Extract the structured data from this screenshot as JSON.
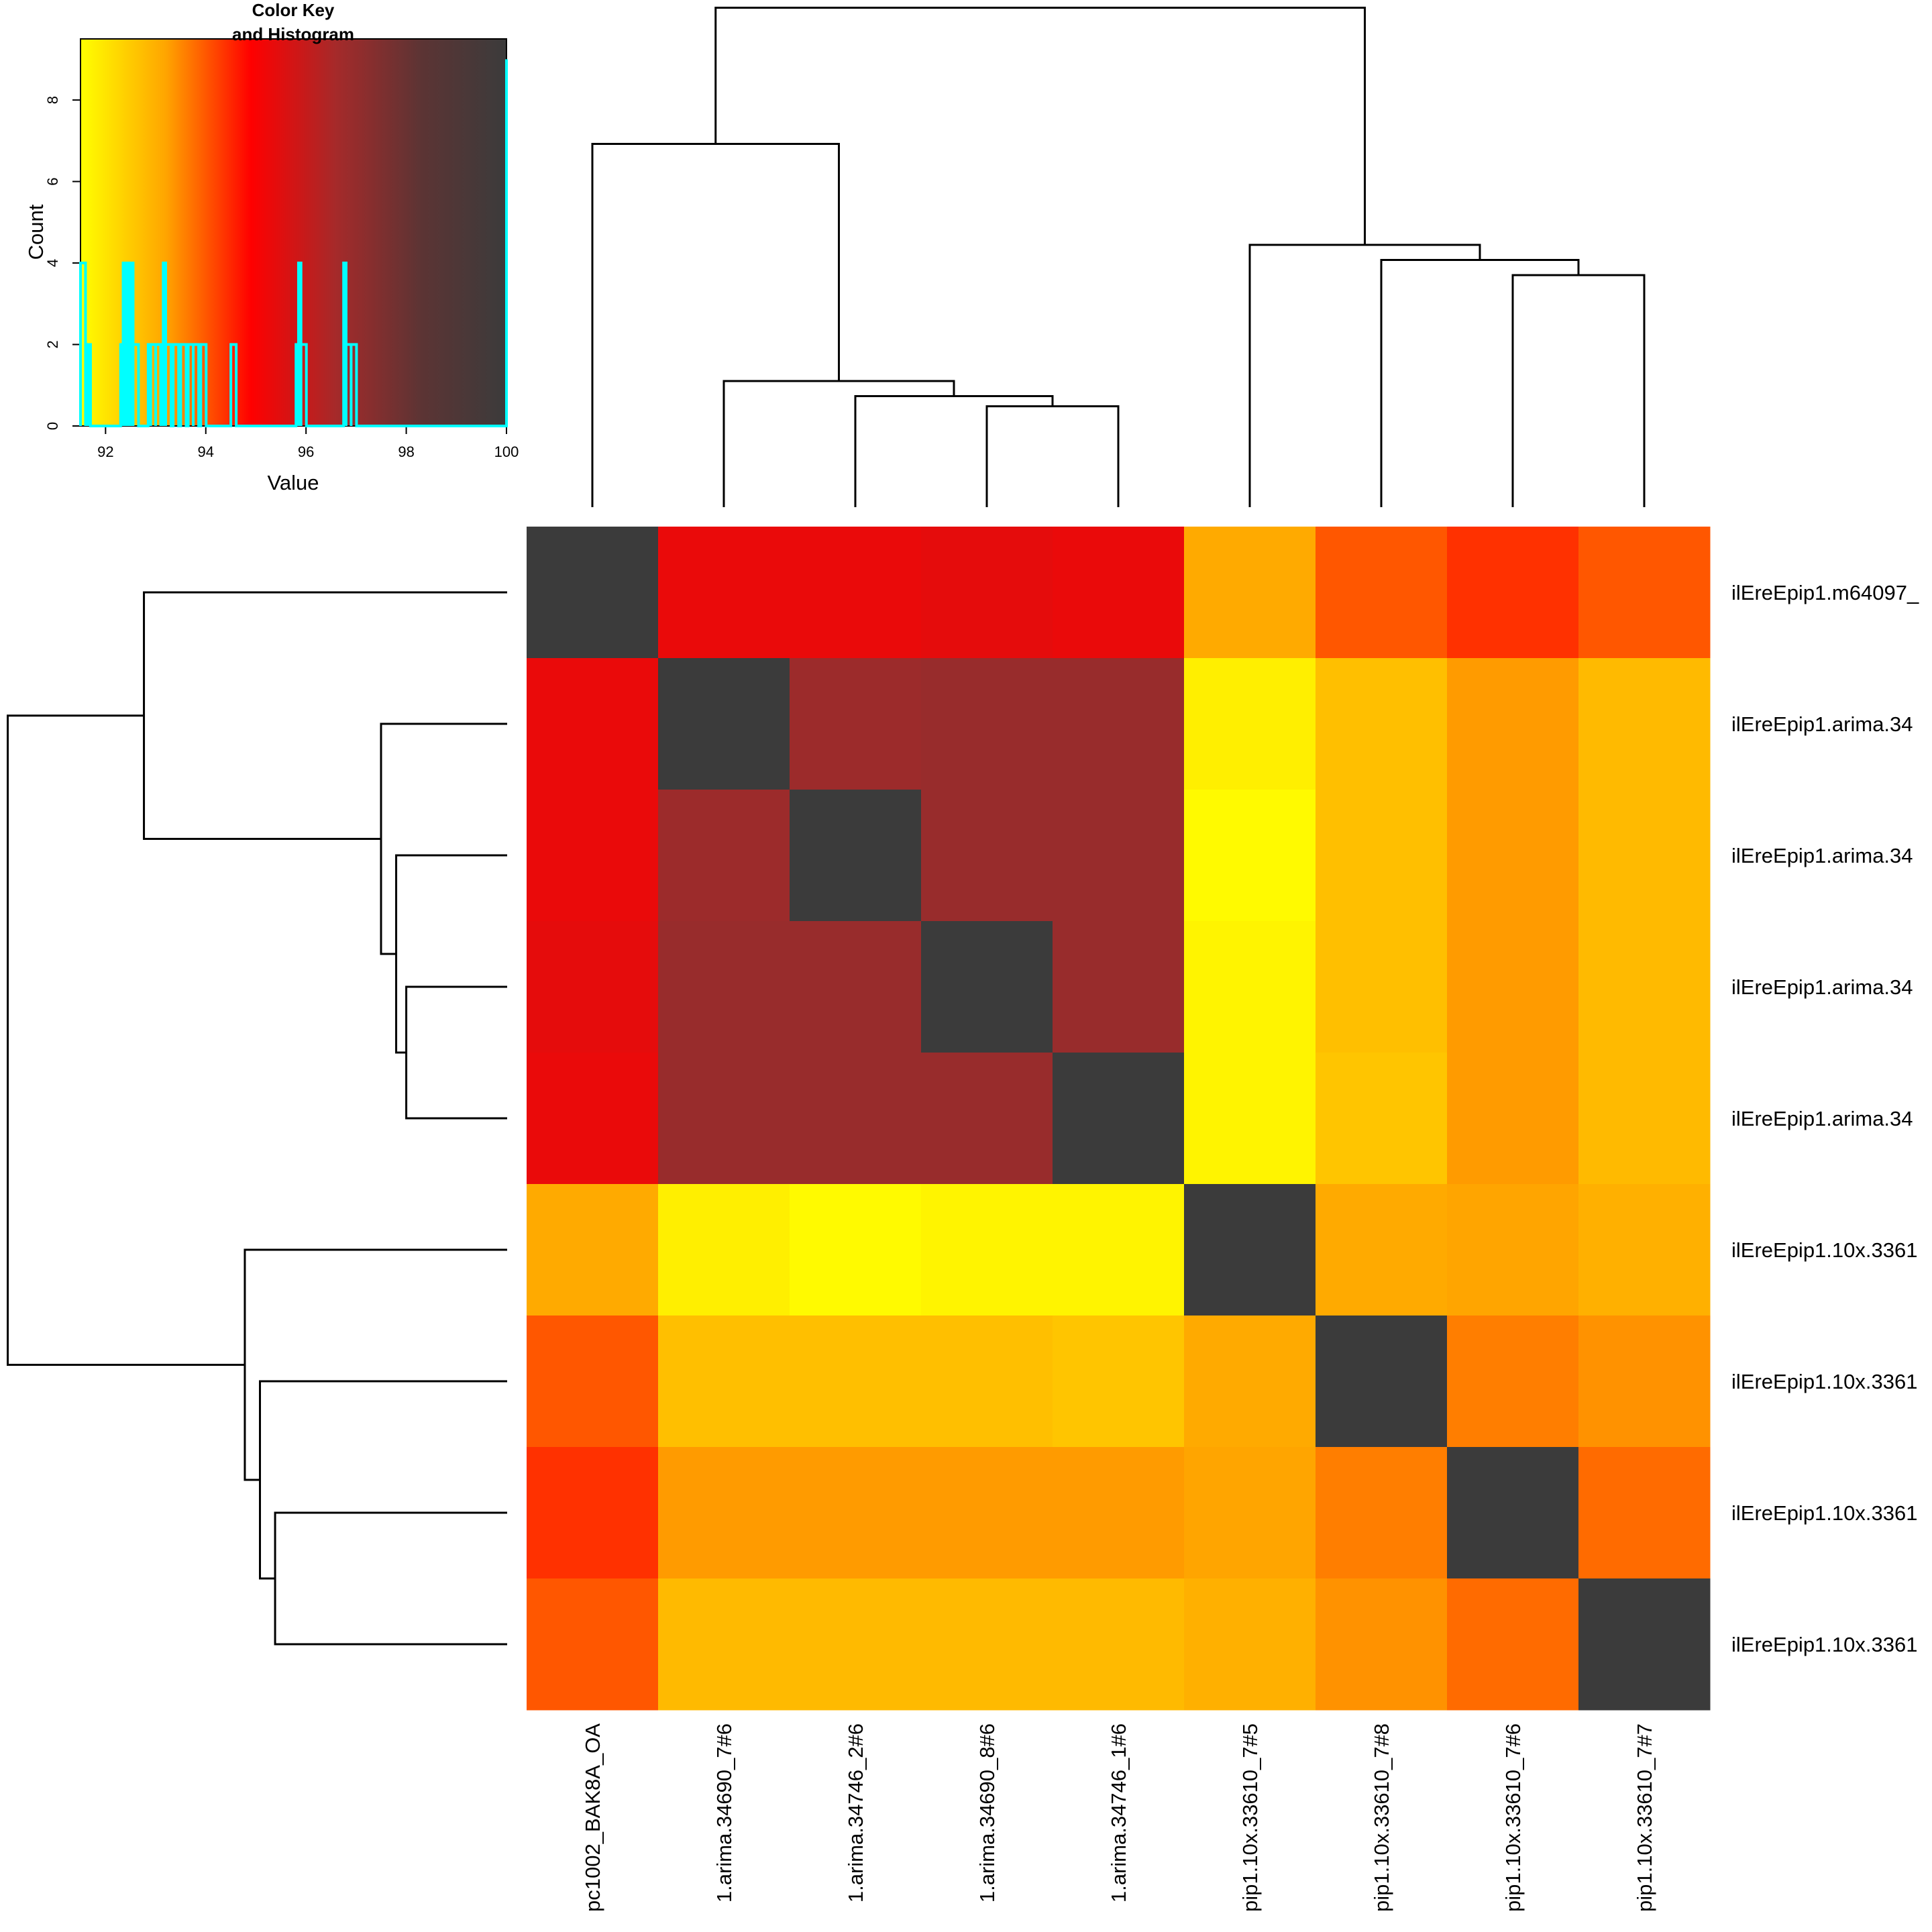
{
  "chart_data": [
    {
      "type": "heatmap",
      "title": "",
      "xlabel": "",
      "ylabel": "",
      "row_labels": [
        "ilEreEpip1.m64097_",
        "ilEreEpip1.arima.34",
        "ilEreEpip1.arima.34",
        "ilEreEpip1.arima.34",
        "ilEreEpip1.arima.34",
        "ilEreEpip1.10x.3361",
        "ilEreEpip1.10x.3361",
        "ilEreEpip1.10x.3361",
        "ilEreEpip1.10x.3361"
      ],
      "col_labels": [
        "pc1002_BAK8A_OA",
        "1.arima.34690_7#6",
        "1.arima.34746_2#6",
        "1.arima.34690_8#6",
        "1.arima.34746_1#6",
        "pip1.10x.33610_7#5",
        "pip1.10x.33610_7#8",
        "pip1.10x.33610_7#6",
        "pip1.10x.33610_7#7"
      ],
      "values": [
        [
          100,
          95.3,
          95.3,
          95.4,
          95.3,
          93.1,
          94.0,
          94.4,
          94.0
        ],
        [
          95.3,
          100,
          96.8,
          96.9,
          96.9,
          91.8,
          92.7,
          93.3,
          92.8
        ],
        [
          95.3,
          96.8,
          100,
          96.9,
          96.9,
          91.6,
          92.7,
          93.3,
          92.8
        ],
        [
          95.4,
          96.9,
          96.9,
          100,
          96.9,
          91.7,
          92.7,
          93.3,
          92.8
        ],
        [
          95.3,
          96.9,
          96.9,
          96.9,
          100,
          91.7,
          92.6,
          93.3,
          92.8
        ],
        [
          93.1,
          91.8,
          91.6,
          91.7,
          91.7,
          100,
          93.1,
          93.2,
          93.0
        ],
        [
          94.0,
          92.7,
          92.7,
          92.7,
          92.6,
          93.1,
          100,
          93.6,
          93.4
        ],
        [
          94.4,
          93.3,
          93.3,
          93.3,
          93.3,
          93.2,
          93.6,
          100,
          93.8
        ],
        [
          94.0,
          92.8,
          92.8,
          92.8,
          92.8,
          93.0,
          93.4,
          93.8,
          100
        ]
      ],
      "color_scale": [
        "#ffff00",
        "#ffa500",
        "#ff0000",
        "#a52a2a",
        "#5c3434",
        "#3b3b3b"
      ],
      "value_range": [
        91.5,
        100
      ],
      "row_dendrogram": "left",
      "col_dendrogram": "top"
    },
    {
      "type": "line",
      "title": "Color Key\nand Histogram",
      "title_lines": [
        "Color Key",
        "and Histogram"
      ],
      "xlabel": "Value",
      "ylabel": "Count",
      "xlim": [
        91.5,
        100
      ],
      "ylim": [
        0,
        9.5
      ],
      "xticks": [
        "92",
        "94",
        "96",
        "98",
        "100"
      ],
      "yticks": [
        "0",
        "2",
        "4",
        "6",
        "8"
      ],
      "series": [
        {
          "color": "#00ffff",
          "x": [
            91.55,
            91.6,
            91.65,
            91.7,
            92.3,
            92.35,
            92.4,
            92.45,
            92.5,
            92.55,
            92.85,
            92.9,
            93.0,
            93.1,
            93.15,
            93.2,
            93.35,
            93.5,
            93.65,
            93.75,
            93.9,
            94.5,
            95.8,
            95.85,
            95.9,
            96.75,
            96.8,
            96.9,
            100
          ],
          "y": [
            4,
            2,
            2,
            0,
            2,
            4,
            2,
            4,
            4,
            2,
            2,
            2,
            2,
            2,
            4,
            2,
            2,
            2,
            2,
            2,
            2,
            2,
            2,
            4,
            2,
            4,
            2,
            2,
            9
          ]
        }
      ]
    }
  ]
}
